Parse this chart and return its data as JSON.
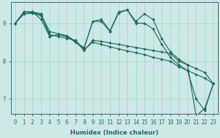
{
  "xlabel": "Humidex (Indice chaleur)",
  "ylabel": "",
  "bg_color": "#cce9e5",
  "grid_color": "#aad4ce",
  "line_color": "#1f6b5e",
  "xlim": [
    -0.5,
    23.5
  ],
  "ylim": [
    6.6,
    9.55
  ],
  "yticks": [
    7,
    8,
    9
  ],
  "xticks": [
    0,
    1,
    2,
    3,
    4,
    5,
    6,
    7,
    8,
    9,
    10,
    11,
    12,
    13,
    14,
    15,
    16,
    17,
    18,
    19,
    20,
    21,
    22,
    23
  ],
  "series": [
    [
      9.0,
      9.3,
      9.3,
      9.25,
      8.65,
      8.7,
      8.65,
      8.5,
      8.35,
      9.05,
      9.1,
      8.8,
      9.3,
      9.35,
      9.05,
      9.25,
      9.1,
      8.6,
      8.25,
      8.05,
      7.9,
      6.55,
      6.75,
      7.4
    ],
    [
      9.0,
      9.3,
      9.3,
      9.1,
      8.65,
      8.7,
      8.65,
      8.5,
      8.35,
      9.05,
      9.05,
      8.78,
      9.27,
      9.35,
      9.0,
      9.0,
      8.85,
      8.45,
      8.1,
      7.9,
      7.75,
      7.0,
      6.7,
      7.4
    ],
    [
      9.0,
      9.25,
      9.28,
      9.22,
      8.78,
      8.72,
      8.67,
      8.52,
      8.28,
      8.55,
      8.52,
      8.48,
      8.44,
      8.4,
      8.36,
      8.32,
      8.28,
      8.24,
      8.2,
      8.0,
      7.9,
      7.8,
      7.7,
      7.4
    ],
    [
      9.0,
      9.25,
      9.26,
      9.2,
      8.7,
      8.65,
      8.6,
      8.55,
      8.3,
      8.5,
      8.44,
      8.38,
      8.32,
      8.27,
      8.22,
      8.17,
      8.1,
      8.05,
      8.0,
      7.85,
      7.75,
      7.65,
      7.55,
      7.4
    ]
  ]
}
